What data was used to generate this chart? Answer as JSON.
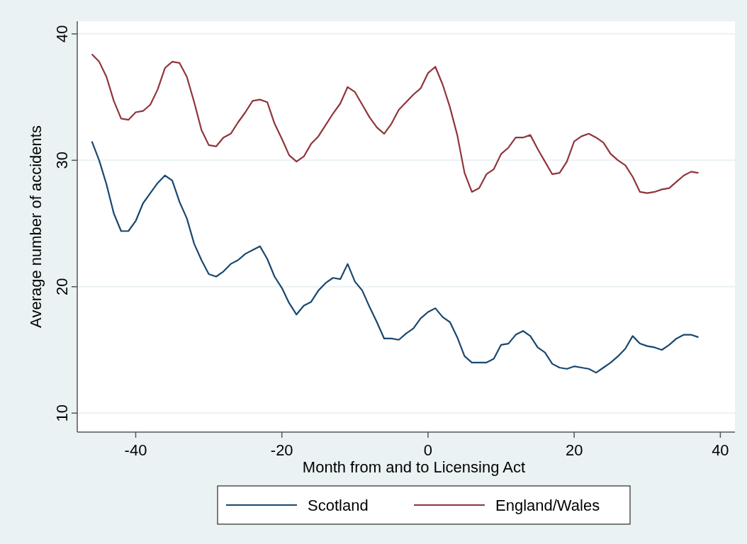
{
  "chart_data": {
    "type": "line",
    "xlabel": "Month from and to Licensing Act",
    "ylabel": "Average number of accidents",
    "x": [
      -46,
      -45,
      -44,
      -43,
      -42,
      -41,
      -40,
      -39,
      -38,
      -37,
      -36,
      -35,
      -34,
      -33,
      -32,
      -31,
      -30,
      -29,
      -28,
      -27,
      -26,
      -25,
      -24,
      -23,
      -22,
      -21,
      -20,
      -19,
      -18,
      -17,
      -16,
      -15,
      -14,
      -13,
      -12,
      -11,
      -10,
      -9,
      -8,
      -7,
      -6,
      -5,
      -4,
      -3,
      -2,
      -1,
      0,
      1,
      2,
      3,
      4,
      5,
      6,
      7,
      8,
      9,
      10,
      11,
      12,
      13,
      14,
      15,
      16,
      17,
      18,
      19,
      20,
      21,
      22,
      23,
      24,
      25,
      26,
      27,
      28,
      29,
      30,
      31,
      32,
      33,
      34,
      35,
      36,
      37
    ],
    "series": [
      {
        "name": "Scotland",
        "color": "#1a476f",
        "values": [
          31.5,
          30.0,
          28.1,
          25.8,
          24.4,
          24.4,
          25.2,
          26.6,
          27.4,
          28.2,
          28.8,
          28.4,
          26.7,
          25.4,
          23.4,
          22.1,
          21.0,
          20.8,
          21.2,
          21.8,
          22.1,
          22.6,
          22.9,
          23.2,
          22.2,
          20.8,
          19.9,
          18.7,
          17.8,
          18.5,
          18.8,
          19.7,
          20.3,
          20.7,
          20.6,
          21.8,
          20.4,
          19.7,
          18.4,
          17.2,
          15.9,
          15.9,
          15.8,
          16.3,
          16.7,
          17.5,
          18.0,
          18.3,
          17.6,
          17.2,
          16.0,
          14.5,
          14.0,
          14.0,
          14.0,
          14.3,
          15.4,
          15.5,
          16.2,
          16.5,
          16.1,
          15.2,
          14.8,
          13.9,
          13.6,
          13.5,
          13.7,
          13.6,
          13.5,
          13.2,
          13.6,
          14.0,
          14.5,
          15.1,
          16.1,
          15.5,
          15.3,
          15.2,
          15.0,
          15.4,
          15.9,
          16.2,
          16.2,
          16.0
        ]
      },
      {
        "name": "England/Wales",
        "color": "#90353b",
        "values": [
          38.4,
          37.8,
          36.6,
          34.7,
          33.3,
          33.2,
          33.8,
          33.9,
          34.4,
          35.6,
          37.3,
          37.8,
          37.7,
          36.6,
          34.6,
          32.4,
          31.2,
          31.1,
          31.8,
          32.1,
          33.0,
          33.8,
          34.7,
          34.8,
          34.6,
          32.9,
          31.7,
          30.4,
          29.9,
          30.3,
          31.3,
          31.9,
          32.8,
          33.7,
          34.5,
          35.8,
          35.4,
          34.4,
          33.4,
          32.6,
          32.1,
          32.9,
          34.0,
          34.6,
          35.2,
          35.7,
          36.9,
          37.4,
          36.0,
          34.2,
          32.0,
          29.0,
          27.5,
          27.8,
          28.9,
          29.3,
          30.5,
          31.0,
          31.8,
          31.8,
          32.0,
          30.9,
          29.9,
          28.9,
          29.0,
          29.9,
          31.5,
          31.9,
          32.1,
          31.8,
          31.4,
          30.5,
          30.0,
          29.6,
          28.7,
          27.5,
          27.4,
          27.5,
          27.7,
          27.8,
          28.3,
          28.8,
          29.1,
          29.0
        ]
      }
    ],
    "xlim": [
      -48,
      42
    ],
    "xticks": [
      -40,
      -20,
      0,
      20,
      40
    ],
    "ylim": [
      8.5,
      41
    ],
    "yticks": [
      10,
      20,
      30,
      40
    ],
    "grid": "y",
    "legend": "bottom",
    "line_style": "solid",
    "marker": "none"
  }
}
